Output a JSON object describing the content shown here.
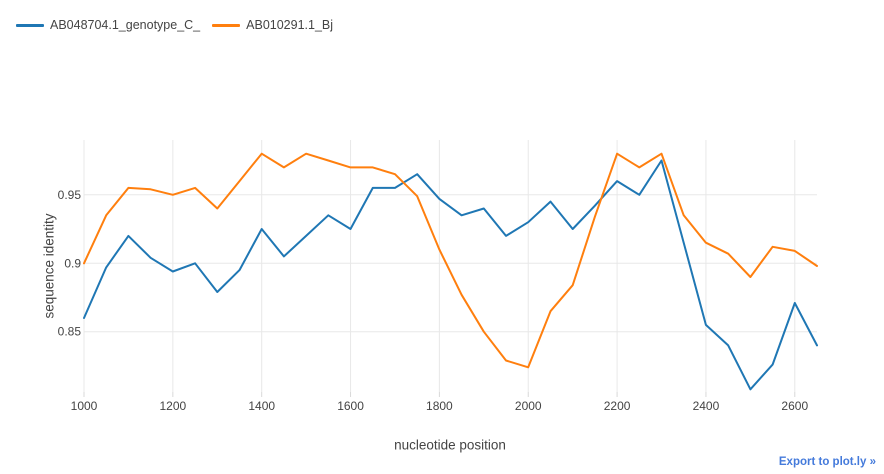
{
  "chart_data": {
    "type": "line",
    "title": "",
    "xlabel": "nucleotide position",
    "ylabel": "sequence identity",
    "grid": true,
    "legend_position": "top-left",
    "line_width": 2,
    "xlim": [
      1000,
      2650
    ],
    "ylim": [
      0.806,
      0.99
    ],
    "x_ticks": [
      1000,
      1200,
      1400,
      1600,
      1800,
      2000,
      2200,
      2400,
      2600
    ],
    "x_tick_labels": [
      "1000",
      "1200",
      "1400",
      "1600",
      "1800",
      "2000",
      "2200",
      "2400",
      "2600"
    ],
    "y_ticks": [
      0.85,
      0.9,
      0.95
    ],
    "y_tick_labels": [
      "0.85",
      "0.9",
      "0.95"
    ],
    "x": [
      1000,
      1050,
      1100,
      1150,
      1200,
      1250,
      1300,
      1350,
      1400,
      1450,
      1500,
      1550,
      1600,
      1650,
      1700,
      1750,
      1800,
      1850,
      1900,
      1950,
      2000,
      2050,
      2100,
      2150,
      2200,
      2250,
      2300,
      2350,
      2400,
      2450,
      2500,
      2550,
      2600,
      2650
    ],
    "series": [
      {
        "name": "AB048704.1_genotype_C_",
        "color": "#1f77b4",
        "values": [
          0.86,
          0.897,
          0.92,
          0.904,
          0.894,
          0.9,
          0.879,
          0.895,
          0.925,
          0.905,
          0.92,
          0.935,
          0.925,
          0.955,
          0.955,
          0.965,
          0.947,
          0.935,
          0.94,
          0.92,
          0.93,
          0.945,
          0.925,
          0.942,
          0.96,
          0.95,
          0.975,
          0.915,
          0.855,
          0.84,
          0.808,
          0.826,
          0.871,
          0.84
        ]
      },
      {
        "name": "AB010291.1_Bj",
        "color": "#ff7f0e",
        "values": [
          0.9,
          0.935,
          0.955,
          0.954,
          0.95,
          0.955,
          0.94,
          0.96,
          0.98,
          0.97,
          0.98,
          0.975,
          0.97,
          0.97,
          0.965,
          0.949,
          0.91,
          0.877,
          0.85,
          0.829,
          0.824,
          0.865,
          0.884,
          0.934,
          0.98,
          0.97,
          0.98,
          0.935,
          0.915,
          0.907,
          0.89,
          0.912,
          0.909,
          0.898
        ]
      }
    ],
    "grid_color": "#e8e8e8",
    "tick_color": "#d8d8d8"
  },
  "footer": {
    "export_label": "Export to plot.ly »",
    "export_color": "#447adb"
  }
}
